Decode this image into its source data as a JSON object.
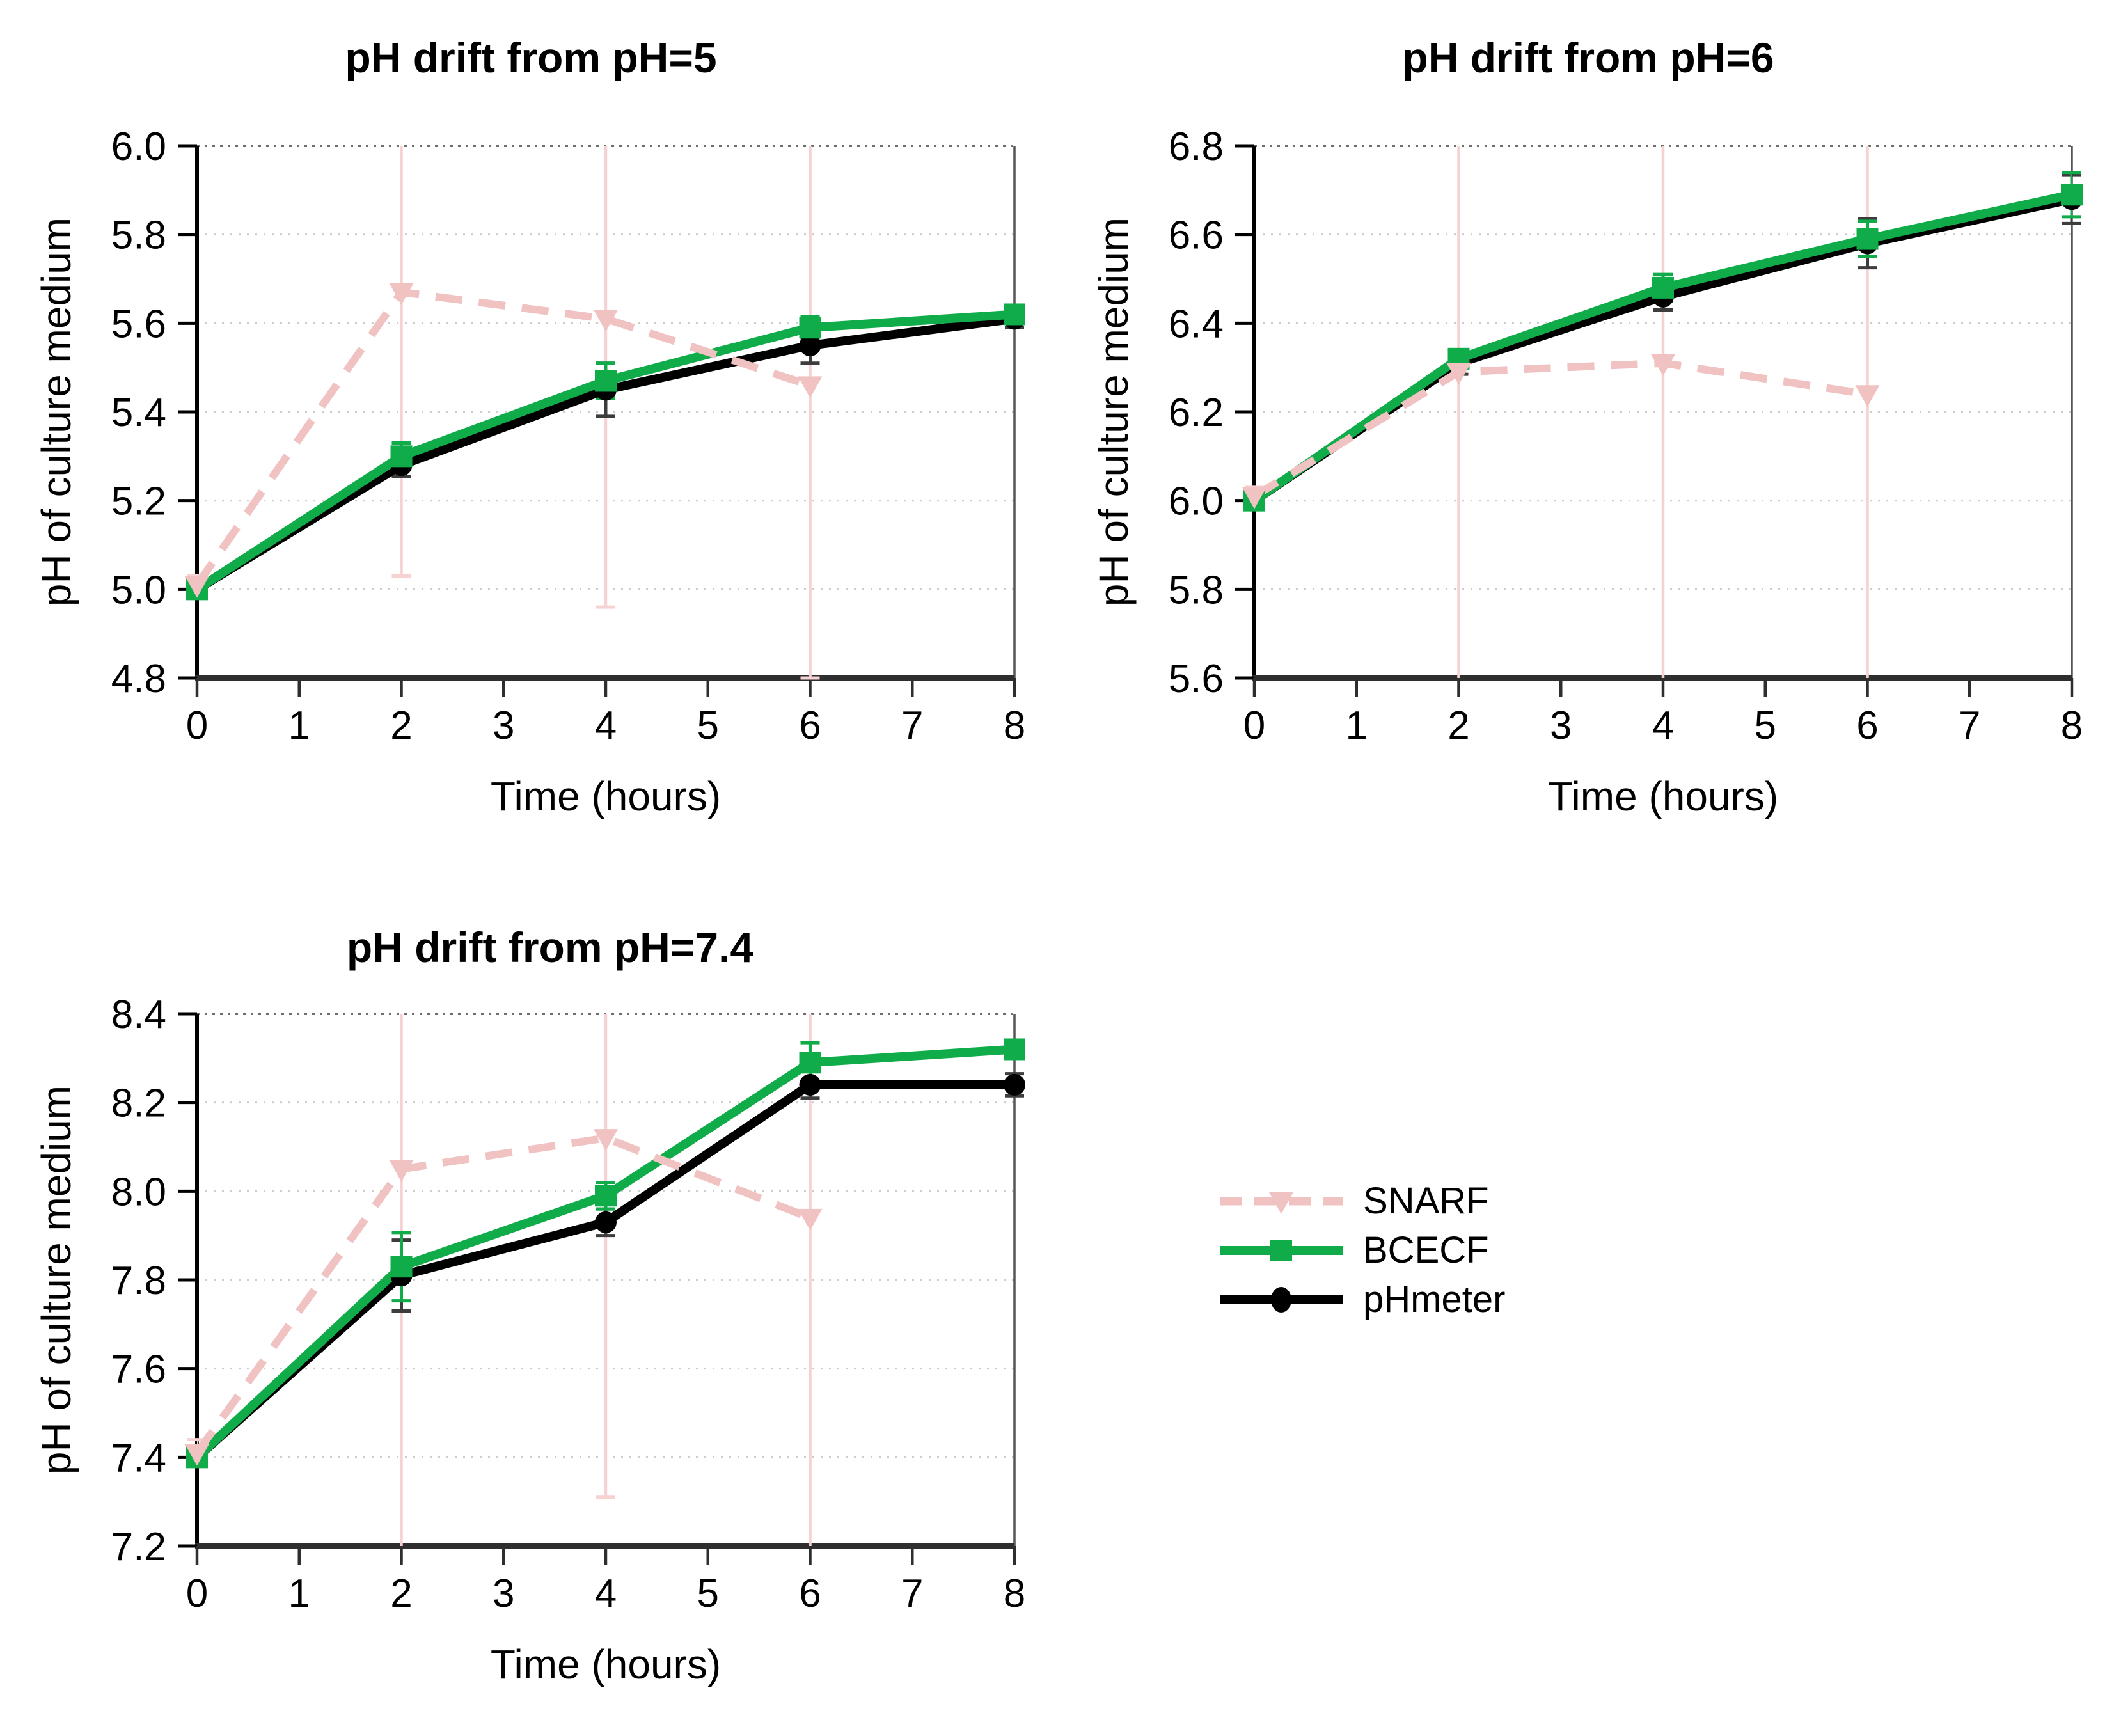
{
  "legend": {
    "items": [
      {
        "label": "SNARF",
        "color": "#f0c2c2",
        "line_style": "dashed",
        "marker": "triangle-down"
      },
      {
        "label": "BCECF",
        "color": "#10ac4a",
        "line_style": "solid",
        "marker": "square"
      },
      {
        "label": "pHmeter",
        "color": "#000000",
        "line_style": "solid",
        "marker": "circle"
      }
    ]
  },
  "chart_data": [
    {
      "type": "line",
      "title": "pH drift from pH=5",
      "xlabel": "Time (hours)",
      "ylabel": "pH of culture medium",
      "xlim": [
        0,
        8
      ],
      "xticks": [
        0,
        1,
        2,
        3,
        4,
        5,
        6,
        7,
        8
      ],
      "ylim": [
        4.8,
        6.0
      ],
      "yticks": [
        4.8,
        5.0,
        5.2,
        5.4,
        5.6,
        5.8,
        6.0
      ],
      "grid": "horizontal dotted",
      "legend_position": "none",
      "series": [
        {
          "name": "SNARF",
          "color": "#f0c2c2",
          "err_color": "#f6d2d2",
          "line_style": "dashed",
          "marker": "triangle-down",
          "x": [
            0,
            2,
            4,
            6
          ],
          "y": [
            5.01,
            5.67,
            5.61,
            5.46
          ],
          "yerr": [
            0.02,
            0.64,
            0.65,
            0.66
          ]
        },
        {
          "name": "pHmeter",
          "color": "#000000",
          "err_color": "#3d3d3d",
          "line_style": "solid",
          "marker": "circle",
          "x": [
            0,
            2,
            4,
            6,
            8
          ],
          "y": [
            5.0,
            5.28,
            5.45,
            5.55,
            5.61
          ],
          "yerr": [
            0.01,
            0.025,
            0.06,
            0.04,
            0.02
          ]
        },
        {
          "name": "BCECF",
          "color": "#10ac4a",
          "err_color": "#10ac4a",
          "line_style": "solid",
          "marker": "square",
          "x": [
            0,
            2,
            4,
            6,
            8
          ],
          "y": [
            5.0,
            5.3,
            5.47,
            5.59,
            5.62
          ],
          "yerr": [
            0.01,
            0.03,
            0.04,
            0.025,
            0.02
          ]
        }
      ]
    },
    {
      "type": "line",
      "title": "pH drift from pH=6",
      "xlabel": "Time (hours)",
      "ylabel": "pH of culture medium",
      "xlim": [
        0,
        8
      ],
      "xticks": [
        0,
        1,
        2,
        3,
        4,
        5,
        6,
        7,
        8
      ],
      "ylim": [
        5.6,
        6.8
      ],
      "yticks": [
        5.6,
        5.8,
        6.0,
        6.2,
        6.4,
        6.6,
        6.8
      ],
      "grid": "horizontal dotted",
      "legend_position": "none",
      "series": [
        {
          "name": "SNARF",
          "color": "#f0c2c2",
          "err_color": "#f6d2d2",
          "line_style": "dashed",
          "marker": "triangle-down",
          "x": [
            0,
            2,
            4,
            6
          ],
          "y": [
            6.01,
            6.29,
            6.31,
            6.24
          ],
          "yerr": [
            0.02,
            0.8,
            0.8,
            0.8
          ]
        },
        {
          "name": "pHmeter",
          "color": "#000000",
          "err_color": "#3d3d3d",
          "line_style": "solid",
          "marker": "circle",
          "x": [
            0,
            2,
            4,
            6,
            8
          ],
          "y": [
            6.0,
            6.31,
            6.46,
            6.58,
            6.68
          ],
          "yerr": [
            0.01,
            0.025,
            0.03,
            0.055,
            0.055
          ]
        },
        {
          "name": "BCECF",
          "color": "#10ac4a",
          "err_color": "#10ac4a",
          "line_style": "solid",
          "marker": "square",
          "x": [
            0,
            2,
            4,
            6,
            8
          ],
          "y": [
            6.0,
            6.32,
            6.48,
            6.59,
            6.69
          ],
          "yerr": [
            0.01,
            0.02,
            0.03,
            0.04,
            0.05
          ]
        }
      ]
    },
    {
      "type": "line",
      "title": "pH drift from pH=7.4",
      "xlabel": "Time (hours)",
      "ylabel": "pH of culture medium",
      "xlim": [
        0,
        8
      ],
      "xticks": [
        0,
        1,
        2,
        3,
        4,
        5,
        6,
        7,
        8
      ],
      "ylim": [
        7.2,
        8.4
      ],
      "yticks": [
        7.2,
        7.4,
        7.6,
        7.8,
        8.0,
        8.2,
        8.4
      ],
      "grid": "horizontal dotted",
      "legend_position": "none",
      "series": [
        {
          "name": "SNARF",
          "color": "#f0c2c2",
          "err_color": "#f6d2d2",
          "line_style": "dashed",
          "marker": "triangle-down",
          "x": [
            0,
            2,
            4,
            6
          ],
          "y": [
            7.41,
            8.05,
            8.12,
            7.94
          ],
          "yerr": [
            0.03,
            1.0,
            0.81,
            1.0
          ]
        },
        {
          "name": "pHmeter",
          "color": "#000000",
          "err_color": "#3d3d3d",
          "line_style": "solid",
          "marker": "circle",
          "x": [
            0,
            2,
            4,
            6,
            8
          ],
          "y": [
            7.4,
            7.81,
            7.93,
            8.24,
            8.24
          ],
          "yerr": [
            0.01,
            0.08,
            0.03,
            0.03,
            0.025
          ]
        },
        {
          "name": "BCECF",
          "color": "#10ac4a",
          "err_color": "#10ac4a",
          "line_style": "solid",
          "marker": "square",
          "x": [
            0,
            2,
            4,
            6,
            8
          ],
          "y": [
            7.4,
            7.83,
            7.99,
            8.29,
            8.32
          ],
          "yerr": [
            0.01,
            0.077,
            0.03,
            0.045,
            0.02
          ]
        }
      ]
    }
  ]
}
